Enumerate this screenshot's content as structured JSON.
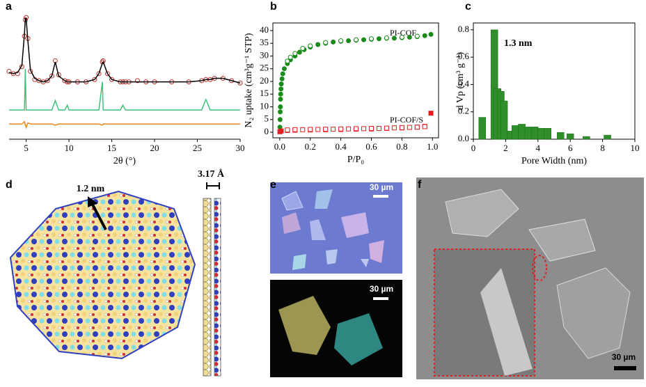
{
  "chart_data": [
    {
      "type": "line",
      "panel": "a",
      "x_label": "2θ (°)",
      "frame": false,
      "xlim": [
        3,
        30
      ],
      "xticks": [
        5,
        10,
        15,
        20,
        25,
        30
      ],
      "ylim": [
        -6,
        104
      ],
      "x": [
        3,
        3.5,
        4,
        4.5,
        4.8,
        4.9,
        5,
        5.2,
        5.5,
        6,
        6.5,
        7,
        7.5,
        8,
        8.4,
        8.8,
        9.5,
        9.8,
        10,
        11,
        12,
        13,
        13.5,
        13.9,
        14,
        14.5,
        15,
        16,
        16.3,
        16.6,
        17,
        18,
        19,
        20,
        22,
        24,
        25.5,
        26,
        26.5,
        27,
        28,
        29,
        30
      ],
      "series": [
        {
          "color": "#b8312f",
          "mode": "markers",
          "values": [
            52,
            50,
            50,
            56,
            82,
            96,
            98,
            80,
            52,
            45,
            44,
            43,
            44,
            48,
            61,
            49,
            44,
            43,
            43,
            43,
            43,
            45,
            50,
            60,
            61,
            50,
            45,
            43,
            43,
            43,
            43,
            44,
            43,
            43,
            43,
            43,
            44,
            45,
            45,
            46,
            46,
            44,
            42
          ]
        },
        {
          "color": "#000000",
          "mode": "line",
          "values": [
            51,
            50,
            51,
            57,
            84,
            97,
            97,
            78,
            53,
            46,
            44,
            43,
            44,
            48,
            60,
            48,
            44,
            43,
            43,
            43,
            43,
            45,
            50,
            59,
            60,
            50,
            45,
            43,
            43,
            43,
            43,
            43,
            43,
            43,
            43,
            43,
            44,
            45,
            45,
            46,
            46,
            44,
            42
          ]
        },
        {
          "color": "#3cc47a",
          "mode": "line",
          "values": [
            19,
            19,
            19,
            19,
            19,
            54,
            19,
            19,
            19,
            19,
            19,
            19,
            19,
            19,
            27,
            19,
            19,
            23,
            19,
            19,
            19,
            19,
            19,
            43,
            19,
            19,
            19,
            19,
            23,
            19,
            19,
            19,
            19,
            19,
            19,
            19,
            19,
            28,
            19,
            19,
            19,
            19,
            19
          ]
        },
        {
          "color": "#e8891a",
          "mode": "line",
          "values": [
            7,
            7,
            7,
            7,
            9,
            6,
            4,
            8,
            7,
            7,
            7,
            7,
            7,
            7,
            6,
            7,
            7,
            7,
            7,
            7,
            7,
            7,
            7,
            6,
            7,
            7,
            7,
            7,
            7,
            7,
            7,
            7,
            7,
            7,
            7,
            7,
            7,
            7,
            7,
            7,
            7,
            7,
            7
          ]
        }
      ]
    },
    {
      "type": "scatter",
      "panel": "b",
      "x_label": "P/P₀",
      "y_label": "N₂ uptake (cm³g⁻¹ STP)",
      "frame": true,
      "xlim": [
        -0.045,
        1.04
      ],
      "ylim": [
        -2.2,
        43
      ],
      "xticks": [
        {
          "value": 0,
          "label": "0.0"
        },
        {
          "value": 0.2,
          "label": "0.2"
        },
        {
          "value": 0.4,
          "label": "0.4"
        },
        {
          "value": 0.6,
          "label": "0.6"
        },
        {
          "value": 0.8,
          "label": "0.8"
        },
        {
          "value": 1,
          "label": "1.0"
        }
      ],
      "yticks": [
        0,
        5,
        10,
        15,
        20,
        25,
        30,
        35,
        40
      ],
      "annotations": [
        "PI-COF",
        "PI-COF/S"
      ],
      "series": [
        {
          "color": "#1a8a1a",
          "marker": "circle",
          "filled": true,
          "x": [
            0.001,
            0.002,
            0.003,
            0.004,
            0.005,
            0.006,
            0.008,
            0.01,
            0.015,
            0.02,
            0.03,
            0.05,
            0.07,
            0.1,
            0.13,
            0.16,
            0.2,
            0.25,
            0.3,
            0.35,
            0.4,
            0.45,
            0.5,
            0.55,
            0.6,
            0.65,
            0.7,
            0.75,
            0.8,
            0.85,
            0.9,
            0.95,
            0.99
          ],
          "values": [
            2,
            5,
            8,
            10,
            13,
            15,
            17,
            19,
            21,
            23,
            25,
            27,
            28.5,
            30,
            31.5,
            32.5,
            33.5,
            34.5,
            35,
            35.5,
            35.8,
            36,
            36.2,
            36.4,
            36.6,
            36.8,
            37,
            37,
            37.2,
            37.4,
            37.6,
            38,
            38.5
          ]
        },
        {
          "color": "#1a8a1a",
          "marker": "circle",
          "filled": false,
          "x": [
            0.9,
            0.8,
            0.7,
            0.6,
            0.5,
            0.4,
            0.3,
            0.2,
            0.15,
            0.1,
            0.07,
            0.05
          ],
          "values": [
            37.8,
            37.4,
            37.1,
            36.8,
            36.4,
            36,
            35.3,
            34,
            33,
            31,
            29.5,
            28
          ]
        },
        {
          "color": "#e02020",
          "marker": "square",
          "filled": true,
          "x": [
            0.001,
            0.01,
            0.05,
            0.1,
            0.2,
            0.3,
            0.4,
            0.5,
            0.6,
            0.7,
            0.8,
            0.9,
            0.95,
            0.99
          ],
          "values": [
            0.2,
            0.5,
            0.7,
            0.8,
            0.9,
            1,
            1.1,
            1.2,
            1.3,
            1.5,
            1.7,
            2,
            2.3,
            7.5
          ]
        },
        {
          "color": "#e02020",
          "marker": "square",
          "filled": false,
          "x": [
            0.95,
            0.9,
            0.85,
            0.8,
            0.75,
            0.7,
            0.65,
            0.6,
            0.55,
            0.5,
            0.45,
            0.4,
            0.35,
            0.3,
            0.25,
            0.2,
            0.15,
            0.1,
            0.05
          ],
          "values": [
            2.2,
            2,
            1.9,
            1.8,
            1.7,
            1.6,
            1.5,
            1.5,
            1.4,
            1.4,
            1.3,
            1.3,
            1.2,
            1.2,
            1.1,
            1.1,
            1,
            1,
            0.9
          ]
        }
      ]
    },
    {
      "type": "bar",
      "panel": "c",
      "x_label": "Pore Width (nm)",
      "y_label": "d Vp (cm³ g⁻¹)",
      "frame": true,
      "xlim": [
        0,
        10
      ],
      "ylim": [
        0,
        0.85
      ],
      "xticks": [
        0,
        2,
        4,
        6,
        8,
        10
      ],
      "yticks": [
        {
          "value": 0,
          "label": "0.0"
        },
        {
          "value": 0.2,
          "label": "0.2"
        },
        {
          "value": 0.4,
          "label": "0.4"
        },
        {
          "value": 0.6,
          "label": "0.6"
        },
        {
          "value": 0.8,
          "label": "0.8"
        }
      ],
      "annotations": [
        "1.3 nm"
      ],
      "color": "#2f8f2a",
      "x": [
        0.55,
        1.3,
        1.5,
        1.7,
        1.9,
        2.3,
        2.6,
        3.0,
        3.4,
        3.8,
        4.2,
        4.6,
        5.4,
        6.0,
        7.0,
        8.3
      ],
      "values": [
        0.16,
        0.8,
        0.37,
        0.35,
        0.28,
        0.06,
        0.1,
        0.11,
        0.09,
        0.09,
        0.08,
        0.08,
        0.05,
        0.04,
        0.02,
        0.03
      ]
    }
  ],
  "panels": {
    "d": {
      "label": "d",
      "annotations": [
        "1.2 nm",
        "3.17 Å"
      ]
    },
    "e": {
      "label": "e",
      "scale_bars": [
        "30 µm",
        "30 µm"
      ]
    },
    "f": {
      "label": "f",
      "scale_bar": "30 µm"
    }
  }
}
